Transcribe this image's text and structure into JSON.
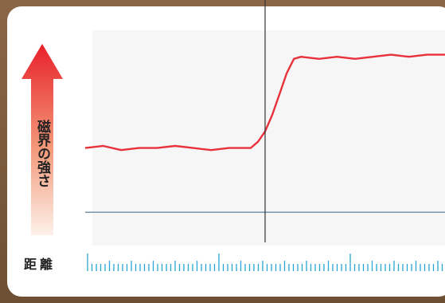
{
  "chart_data": {
    "type": "line",
    "title": "",
    "ylabel": "磁界の強さ",
    "xlabel": "距離",
    "x_range": [
      0,
      100
    ],
    "y_range": [
      0,
      100
    ],
    "grid": false,
    "legend": "none",
    "series": [
      {
        "color": "#e8313a",
        "x": [
          0,
          5,
          10,
          15,
          20,
          25,
          30,
          35,
          40,
          42,
          46,
          48,
          50,
          52,
          54,
          56,
          58,
          60,
          65,
          70,
          75,
          80,
          85,
          90,
          95,
          100
        ],
        "y": [
          44,
          45,
          43,
          44,
          44,
          45,
          44,
          43,
          44,
          44,
          44,
          47,
          52,
          60,
          70,
          80,
          87,
          88,
          87,
          88,
          87,
          88,
          89,
          88,
          89,
          89
        ]
      },
      {
        "color": "#6a8aa6",
        "x": [
          0,
          100
        ],
        "y": [
          13,
          13
        ]
      }
    ],
    "marker_line_x": 50
  },
  "colors": {
    "arrow_top": "#e8202a",
    "arrow_bottom": "#fdeee6",
    "ruler": "#2aa6d6",
    "marker": "#333333"
  }
}
